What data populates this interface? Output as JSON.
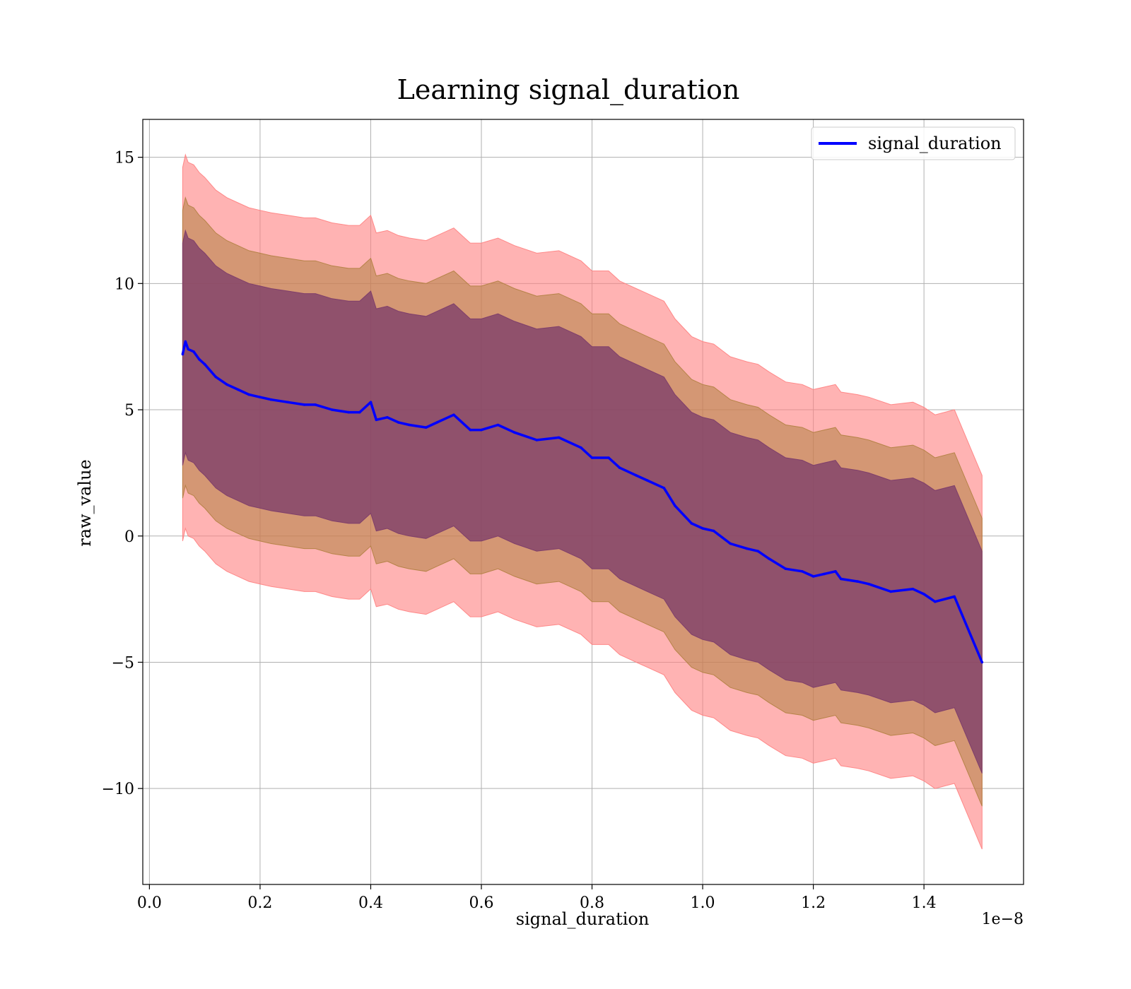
{
  "chart_data": {
    "type": "line",
    "title": "Learning signal_duration",
    "xlabel": "signal_duration",
    "ylabel": "raw_value",
    "x_offset_label": "1e−8",
    "x_ticks": [
      0.0,
      0.2,
      0.4,
      0.6,
      0.8,
      1.0,
      1.2,
      1.4
    ],
    "x_tick_labels": [
      "0.0",
      "0.2",
      "0.4",
      "0.6",
      "0.8",
      "1.0",
      "1.2",
      "1.4"
    ],
    "y_ticks": [
      -10,
      -5,
      0,
      5,
      10,
      15
    ],
    "y_tick_labels": [
      "−10",
      "−5",
      "0",
      "5",
      "10",
      "15"
    ],
    "xlim": [
      -0.012,
      1.58
    ],
    "ylim": [
      -13.8,
      16.5
    ],
    "grid": true,
    "legend": {
      "position": "top-right",
      "entries": [
        "signal_duration"
      ]
    },
    "colors": {
      "line": "#0000ff",
      "band_outer": "#ff8080",
      "band_middle": "#b08040",
      "band_inner": "#7a3a6a",
      "grid": "#b0b0b0"
    },
    "series": [
      {
        "name": "signal_duration",
        "x": [
          0.06,
          0.065,
          0.07,
          0.08,
          0.09,
          0.1,
          0.12,
          0.14,
          0.16,
          0.18,
          0.2,
          0.22,
          0.25,
          0.28,
          0.3,
          0.33,
          0.36,
          0.38,
          0.4,
          0.41,
          0.43,
          0.45,
          0.47,
          0.5,
          0.52,
          0.55,
          0.58,
          0.6,
          0.63,
          0.66,
          0.7,
          0.74,
          0.78,
          0.8,
          0.83,
          0.85,
          0.88,
          0.9,
          0.93,
          0.95,
          0.98,
          1.0,
          1.02,
          1.05,
          1.08,
          1.1,
          1.12,
          1.15,
          1.18,
          1.2,
          1.22,
          1.24,
          1.25,
          1.28,
          1.3,
          1.34,
          1.38,
          1.4,
          1.42,
          1.455,
          1.505
        ],
        "values": [
          7.2,
          7.7,
          7.4,
          7.3,
          7.0,
          6.8,
          6.3,
          6.0,
          5.8,
          5.6,
          5.5,
          5.4,
          5.3,
          5.2,
          5.2,
          5.0,
          4.9,
          4.9,
          5.3,
          4.6,
          4.7,
          4.5,
          4.4,
          4.3,
          4.5,
          4.8,
          4.2,
          4.2,
          4.4,
          4.1,
          3.8,
          3.9,
          3.5,
          3.1,
          3.1,
          2.7,
          2.4,
          2.2,
          1.9,
          1.2,
          0.5,
          0.3,
          0.2,
          -0.3,
          -0.5,
          -0.6,
          -0.9,
          -1.3,
          -1.4,
          -1.6,
          -1.5,
          -1.4,
          -1.7,
          -1.8,
          -1.9,
          -2.2,
          -2.1,
          -2.3,
          -2.6,
          -2.4,
          -5.0
        ],
        "band_1_halfwidth": 4.4,
        "band_2_halfwidth": 5.7,
        "band_3_halfwidth": 7.4
      }
    ]
  }
}
